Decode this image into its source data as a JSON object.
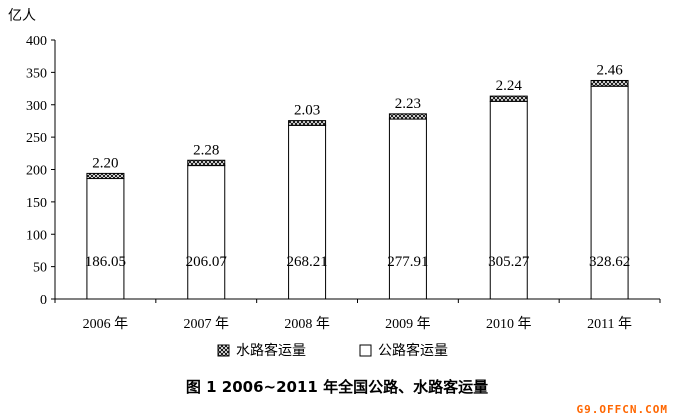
{
  "caption": "图 1 2006~2011 年全国公路、水路客运量",
  "watermark": "G9.OFFCN.COM",
  "chart_data": {
    "type": "bar",
    "stacked": true,
    "ylabel": "亿人",
    "ylim": [
      0,
      400
    ],
    "yticks": [
      0,
      50,
      100,
      150,
      200,
      250,
      300,
      350,
      400
    ],
    "categories": [
      "2006 年",
      "2007 年",
      "2008 年",
      "2009 年",
      "2010 年",
      "2011 年"
    ],
    "series": [
      {
        "name": "公路客运量",
        "values": [
          186.05,
          206.07,
          268.21,
          277.91,
          305.27,
          328.62
        ],
        "fill": "#ffffff"
      },
      {
        "name": "水路客运量",
        "values": [
          2.2,
          2.28,
          2.03,
          2.23,
          2.24,
          2.46
        ],
        "fill": "hatch"
      }
    ],
    "legend": {
      "placement": "bottom",
      "order": [
        "水路客运量",
        "公路客运量"
      ]
    },
    "grid": false
  }
}
